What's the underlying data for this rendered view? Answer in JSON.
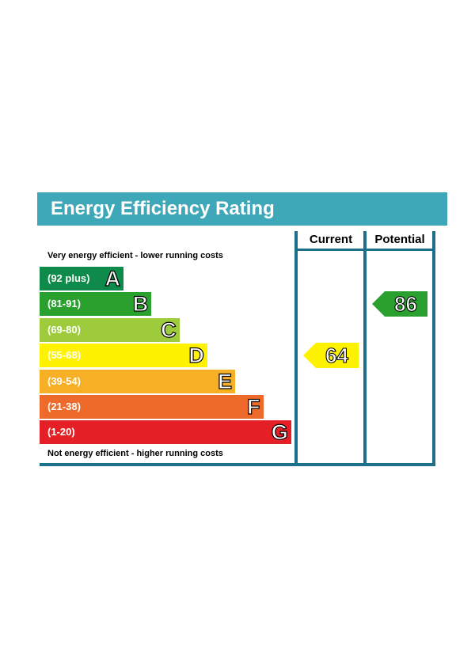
{
  "title": "Energy Efficiency Rating",
  "columns": {
    "current": "Current",
    "potential": "Potential"
  },
  "notes": {
    "top": "Very energy efficient - lower running costs",
    "bottom": "Not energy efficient - higher running costs"
  },
  "colors": {
    "header": "#3ea8b8",
    "frame": "#1e6e8e",
    "A": "#0e8a4a",
    "B": "#2aa12f",
    "C": "#9dcb3c",
    "D": "#fff200",
    "E": "#f7b026",
    "F": "#ee6a2a",
    "G": "#e41f26"
  },
  "chart_data": {
    "type": "bar",
    "title": "Energy Efficiency Rating",
    "categories": [
      "A",
      "B",
      "C",
      "D",
      "E",
      "F",
      "G"
    ],
    "ranges": [
      "(92 plus)",
      "(81-91)",
      "(69-80)",
      "(55-68)",
      "(39-54)",
      "(21-38)",
      "(1-20)"
    ],
    "bands": [
      {
        "letter": "A",
        "range": "(92 plus)",
        "min": 92,
        "max": 100
      },
      {
        "letter": "B",
        "range": "(81-91)",
        "min": 81,
        "max": 91
      },
      {
        "letter": "C",
        "range": "(69-80)",
        "min": 69,
        "max": 80
      },
      {
        "letter": "D",
        "range": "(55-68)",
        "min": 55,
        "max": 68
      },
      {
        "letter": "E",
        "range": "(39-54)",
        "min": 39,
        "max": 54
      },
      {
        "letter": "F",
        "range": "(21-38)",
        "min": 21,
        "max": 38
      },
      {
        "letter": "G",
        "range": "(1-20)",
        "min": 1,
        "max": 20
      }
    ],
    "current": {
      "value": 64,
      "band": "D"
    },
    "potential": {
      "value": 86,
      "band": "B"
    }
  }
}
